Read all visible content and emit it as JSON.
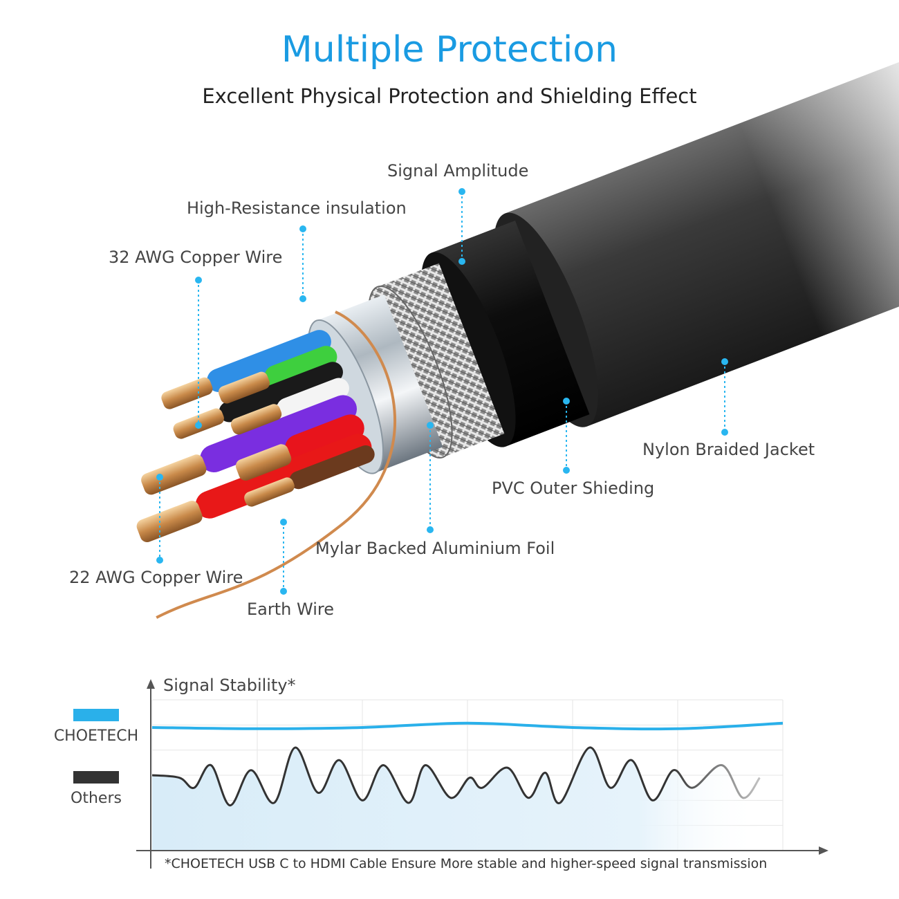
{
  "header": {
    "title": "Multiple Protection",
    "subtitle": "Excellent Physical Protection and Shielding Effect"
  },
  "colors": {
    "accent": "#1a9be2",
    "choetech": "#2ab0ea",
    "others": "#333333",
    "leader": "#29b6f0"
  },
  "callouts": [
    {
      "label": "Signal Amplitude"
    },
    {
      "label": "High-Resistance insulation"
    },
    {
      "label": "32 AWG Copper Wire"
    },
    {
      "label": "22 AWG Copper Wire"
    },
    {
      "label": "Earth Wire"
    },
    {
      "label": "Mylar Backed Aluminium Foil"
    },
    {
      "label": "PVC Outer Shieding"
    },
    {
      "label": "Nylon Braided Jacket"
    }
  ],
  "chart_data": {
    "type": "line",
    "title": "",
    "ylabel": "Signal Stability*",
    "xlabel": "",
    "grid": true,
    "legend_placement": "left",
    "xlim": [
      0,
      30
    ],
    "ylim": [
      0,
      6
    ],
    "footnote": "*CHOETECH USB C to HDMI Cable Ensure More stable and higher-speed signal transmission",
    "series": [
      {
        "name": "CHOETECH",
        "color": "#2ab0ea",
        "points": [
          [
            0,
            4.9
          ],
          [
            5,
            4.85
          ],
          [
            10,
            4.9
          ],
          [
            15,
            5.07
          ],
          [
            20,
            4.9
          ],
          [
            25,
            4.85
          ],
          [
            30,
            5.07
          ]
        ]
      },
      {
        "name": "Others",
        "color": "#333333",
        "points": [
          [
            0,
            3.0
          ],
          [
            1.3,
            2.9
          ],
          [
            2.0,
            2.5
          ],
          [
            2.8,
            3.4
          ],
          [
            3.7,
            1.8
          ],
          [
            4.7,
            3.2
          ],
          [
            5.8,
            1.9
          ],
          [
            6.8,
            4.1
          ],
          [
            7.9,
            2.3
          ],
          [
            8.9,
            3.6
          ],
          [
            10.0,
            2.0
          ],
          [
            11.0,
            3.4
          ],
          [
            12.2,
            1.9
          ],
          [
            13.0,
            3.4
          ],
          [
            14.2,
            2.1
          ],
          [
            15.1,
            2.9
          ],
          [
            15.7,
            2.5
          ],
          [
            16.9,
            3.3
          ],
          [
            17.9,
            2.1
          ],
          [
            18.7,
            3.1
          ],
          [
            19.4,
            1.9
          ],
          [
            20.8,
            4.1
          ],
          [
            21.8,
            2.5
          ],
          [
            22.8,
            3.6
          ],
          [
            23.8,
            2.0
          ],
          [
            24.8,
            3.2
          ],
          [
            25.7,
            2.5
          ],
          [
            27.1,
            3.4
          ],
          [
            28.1,
            2.1
          ],
          [
            28.9,
            2.9
          ]
        ]
      }
    ]
  }
}
